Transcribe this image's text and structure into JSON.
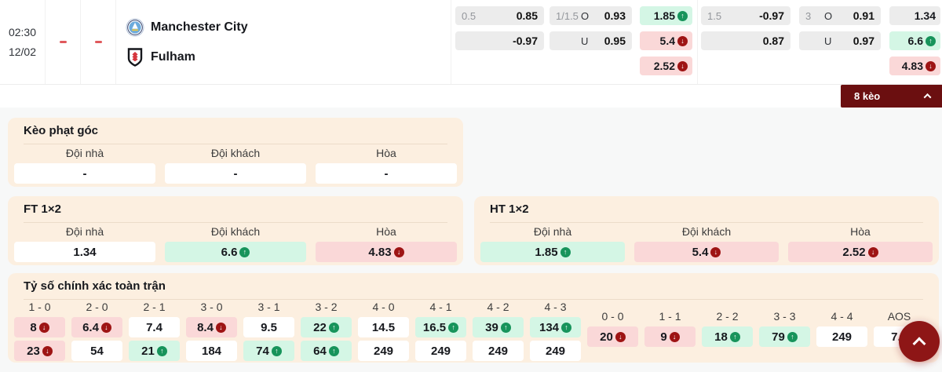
{
  "match": {
    "time": "02:30",
    "date": "12/02",
    "home_team": "Manchester City",
    "away_team": "Fulham",
    "home_score": "-",
    "away_score": "-"
  },
  "odds_row": {
    "hdp1": {
      "r1_hdp": "0.5",
      "r1_odds": "0.85",
      "r2_hdp": "",
      "r2_odds": "-0.97"
    },
    "ou1": {
      "r1_hdp": "1/1.5",
      "r1_side": "O",
      "r1_odds": "0.93",
      "r2_hdp": "",
      "r2_side": "U",
      "r2_odds": "0.95"
    },
    "x12_1": [
      {
        "value": "1.85",
        "trend": "up"
      },
      {
        "value": "5.4",
        "trend": "down"
      },
      {
        "value": "2.52",
        "trend": "down"
      }
    ],
    "hdp2": {
      "r1_hdp": "1.5",
      "r1_odds": "-0.97",
      "r2_hdp": "",
      "r2_odds": "0.87"
    },
    "ou2": {
      "r1_hdp": "3",
      "r1_side": "O",
      "r1_odds": "0.91",
      "r2_hdp": "",
      "r2_side": "U",
      "r2_odds": "0.97"
    },
    "x12_2": [
      {
        "value": "1.34",
        "trend": ""
      },
      {
        "value": "6.6",
        "trend": "up"
      },
      {
        "value": "4.83",
        "trend": "down"
      }
    ]
  },
  "more_button": {
    "label": "8 kèo"
  },
  "corner_section": {
    "title": "Kèo phạt góc",
    "headers": [
      "Đội nhà",
      "Đội khách",
      "Hòa"
    ],
    "cells": [
      {
        "value": "-",
        "trend": ""
      },
      {
        "value": "-",
        "trend": ""
      },
      {
        "value": "-",
        "trend": ""
      }
    ]
  },
  "ft_section": {
    "title": "FT 1×2",
    "headers": [
      "Đội nhà",
      "Đội khách",
      "Hòa"
    ],
    "cells": [
      {
        "value": "1.34",
        "trend": ""
      },
      {
        "value": "6.6",
        "trend": "up"
      },
      {
        "value": "4.83",
        "trend": "down"
      }
    ]
  },
  "ht_section": {
    "title": "HT 1×2",
    "headers": [
      "Đội nhà",
      "Đội khách",
      "Hòa"
    ],
    "cells": [
      {
        "value": "1.85",
        "trend": "up"
      },
      {
        "value": "5.4",
        "trend": "down"
      },
      {
        "value": "2.52",
        "trend": "down"
      }
    ]
  },
  "score_section": {
    "title": "Tỷ số chính xác toàn trận",
    "main": {
      "columns": [
        "1 - 0",
        "2 - 0",
        "2 - 1",
        "3 - 0",
        "3 - 1",
        "3 - 2",
        "4 - 0",
        "4 - 1",
        "4 - 2",
        "4 - 3"
      ],
      "rows": [
        [
          {
            "value": "8",
            "trend": "down"
          },
          {
            "value": "6.4",
            "trend": "down"
          },
          {
            "value": "7.4",
            "trend": ""
          },
          {
            "value": "8.4",
            "trend": "down"
          },
          {
            "value": "9.5",
            "trend": ""
          },
          {
            "value": "22",
            "trend": "up"
          },
          {
            "value": "14.5",
            "trend": ""
          },
          {
            "value": "16.5",
            "trend": "up"
          },
          {
            "value": "39",
            "trend": "up"
          },
          {
            "value": "134",
            "trend": "up"
          }
        ],
        [
          {
            "value": "23",
            "trend": "down"
          },
          {
            "value": "54",
            "trend": ""
          },
          {
            "value": "21",
            "trend": "up"
          },
          {
            "value": "184",
            "trend": ""
          },
          {
            "value": "74",
            "trend": "up"
          },
          {
            "value": "64",
            "trend": "up"
          },
          {
            "value": "249",
            "trend": ""
          },
          {
            "value": "249",
            "trend": ""
          },
          {
            "value": "249",
            "trend": ""
          },
          {
            "value": "249",
            "trend": ""
          }
        ]
      ]
    },
    "draws": {
      "columns": [
        "0 - 0",
        "1 - 1",
        "2 - 2",
        "3 - 3",
        "4 - 4",
        "AOS"
      ],
      "rows": [
        [
          {
            "value": "20",
            "trend": "down"
          },
          {
            "value": "9",
            "trend": "down"
          },
          {
            "value": "18",
            "trend": "up"
          },
          {
            "value": "79",
            "trend": "up"
          },
          {
            "value": "249",
            "trend": ""
          },
          {
            "value": "7.2",
            "trend": ""
          }
        ]
      ]
    }
  },
  "icons": {
    "trend_up": "arrow-up-circle ↑",
    "trend_down": "arrow-down-circle ↓",
    "chevron_up": "chevron-up ^",
    "home_logo": "manchester-city-crest",
    "away_logo": "fulham-crest"
  },
  "colors": {
    "maroon_button": "#6b0f10",
    "fab_red": "#8e1616",
    "panel_bg": "#fcefe0",
    "green_cell": "#d4f6e5",
    "red_cell": "#fad8d8",
    "gray_cell": "#ececec",
    "trend_up": "#17945b",
    "trend_down": "#9e1414",
    "score_dash": "#e0595c"
  }
}
